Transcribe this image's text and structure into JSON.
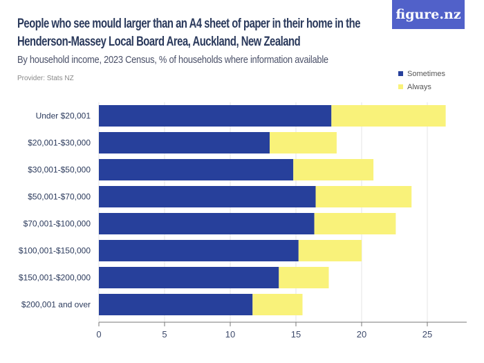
{
  "header": {
    "title": "People who see mould larger than an A4 sheet of paper in their home in the Henderson-Massey Local Board Area, Auckland, New Zealand",
    "subtitle": "By household income, 2023 Census, % of households where information available",
    "provider": "Provider: Stats NZ",
    "logo": "figure.nz"
  },
  "colors": {
    "sometimes": "#27409b",
    "always": "#f9f27a",
    "logo_bg": "#5161c9",
    "text": "#2b3a5c"
  },
  "chart_data": {
    "type": "bar",
    "orientation": "horizontal",
    "stacked": true,
    "title": "People who see mould larger than an A4 sheet of paper in their home in the Henderson-Massey Local Board Area, Auckland, New Zealand",
    "subtitle": "By household income, 2023 Census, % of households where information available",
    "categories": [
      "Under $20,001",
      "$20,001-$30,000",
      "$30,001-$50,000",
      "$50,001-$70,000",
      "$70,001-$100,000",
      "$100,001-$150,000",
      "$150,001-$200,000",
      "$200,001 and over"
    ],
    "series": [
      {
        "name": "Sometimes",
        "values": [
          17.7,
          13.0,
          14.8,
          16.5,
          16.4,
          15.2,
          13.7,
          11.7
        ]
      },
      {
        "name": "Always",
        "values": [
          8.7,
          5.1,
          6.1,
          7.3,
          6.2,
          4.8,
          3.8,
          3.8
        ]
      }
    ],
    "xlim": [
      0,
      28
    ],
    "xticks": [
      0,
      5,
      10,
      15,
      20,
      25
    ],
    "grid": true,
    "legend": "top-right"
  }
}
